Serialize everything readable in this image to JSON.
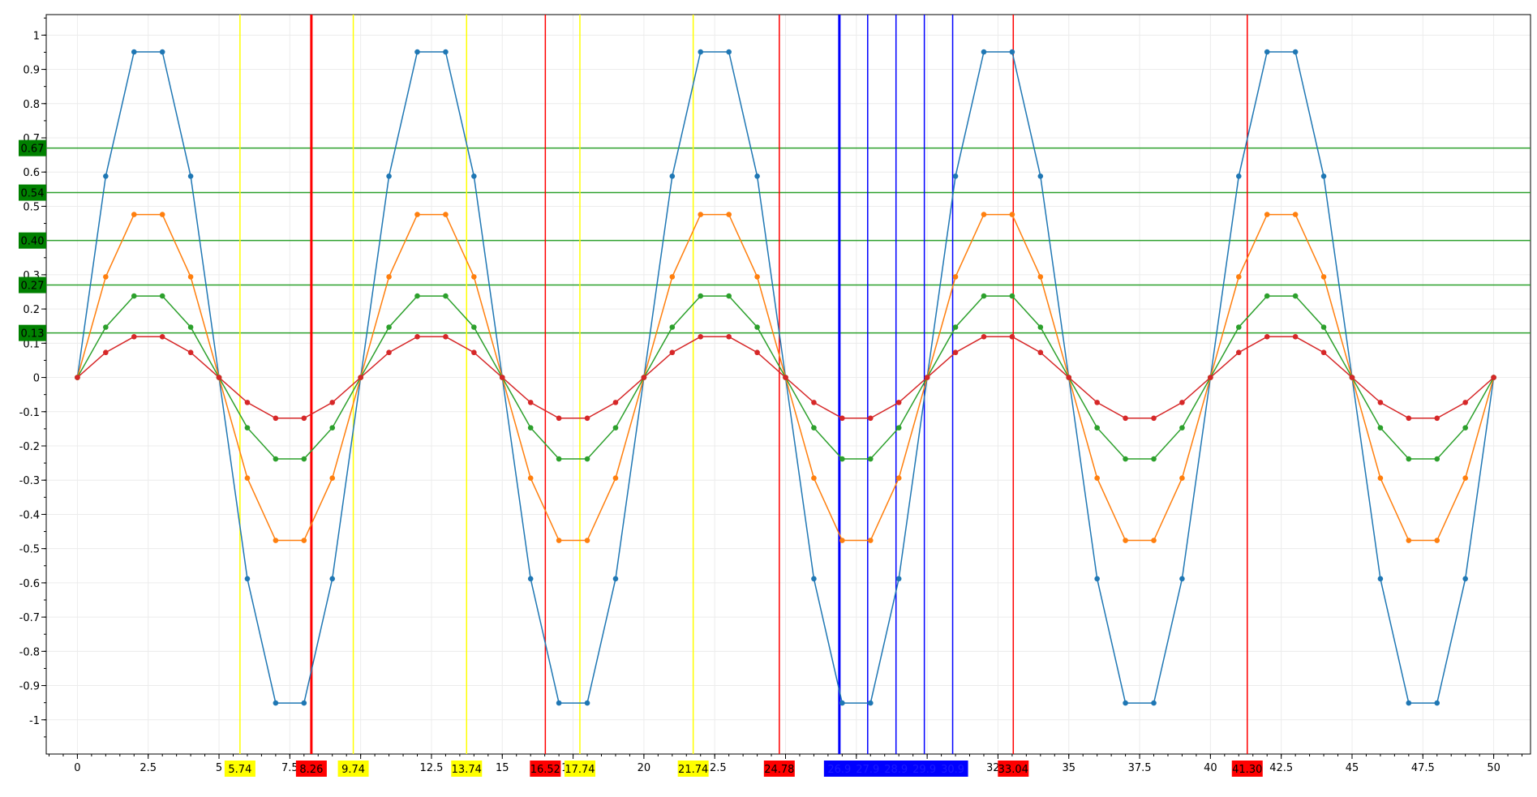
{
  "chart_data": {
    "type": "line",
    "xlim": [
      -1.1,
      51.3
    ],
    "ylim": [
      -1.1,
      1.06
    ],
    "x_ticks": [
      0,
      2.5,
      5,
      7.5,
      10,
      12.5,
      15,
      17.5,
      20,
      22.5,
      25,
      27.5,
      30,
      32.5,
      35,
      37.5,
      40,
      42.5,
      45,
      47.5,
      50
    ],
    "x_tick_labels": [
      "0",
      "2.5",
      "5",
      "7.5",
      "10",
      "12.5",
      "15",
      "17.5",
      "20",
      "22.5",
      "25",
      "27.5",
      "30",
      "32.5",
      "35",
      "37.5",
      "40",
      "42.5",
      "45",
      "47.5",
      "50"
    ],
    "y_ticks": [
      -1,
      -0.9,
      -0.8,
      -0.7,
      -0.6,
      -0.5,
      -0.4,
      -0.3,
      -0.2,
      -0.1,
      0,
      0.1,
      0.2,
      0.3,
      0.4,
      0.5,
      0.6,
      0.7,
      0.8,
      0.9,
      1
    ],
    "y_tick_labels": [
      "-1",
      "-0.9",
      "-0.8",
      "-0.7",
      "-0.6",
      "-0.5",
      "-0.4",
      "-0.3",
      "-0.2",
      "-0.1",
      "0",
      "0.1",
      "0.2",
      "0.3",
      "0.4",
      "0.5",
      "0.6",
      "0.7",
      "0.8",
      "0.9",
      "1"
    ],
    "grid": true,
    "x": [
      0,
      1,
      2,
      3,
      4,
      5,
      6,
      7,
      8,
      9,
      10,
      11,
      12,
      13,
      14,
      15,
      16,
      17,
      18,
      19,
      20,
      21,
      22,
      23,
      24,
      25,
      26,
      27,
      28,
      29,
      30,
      31,
      32,
      33,
      34,
      35,
      36,
      37,
      38,
      39,
      40,
      41,
      42,
      43,
      44,
      45,
      46,
      47,
      48,
      49,
      50
    ],
    "series": [
      {
        "color": "#1f77b4",
        "values": [
          0,
          0.588,
          0.951,
          0.951,
          0.588,
          0,
          -0.588,
          -0.951,
          -0.951,
          -0.588,
          0,
          0.588,
          0.951,
          0.951,
          0.588,
          0,
          -0.588,
          -0.951,
          -0.951,
          -0.588,
          0,
          0.588,
          0.951,
          0.951,
          0.588,
          0,
          -0.588,
          -0.951,
          -0.951,
          -0.588,
          0,
          0.588,
          0.951,
          0.951,
          0.588,
          0,
          -0.588,
          -0.951,
          -0.951,
          -0.588,
          0,
          0.588,
          0.951,
          0.951,
          0.588,
          0,
          -0.588,
          -0.951,
          -0.951,
          -0.588,
          0
        ]
      },
      {
        "color": "#ff7f0e",
        "values": [
          0,
          0.294,
          0.476,
          0.476,
          0.294,
          0,
          -0.294,
          -0.476,
          -0.476,
          -0.294,
          0,
          0.294,
          0.476,
          0.476,
          0.294,
          0,
          -0.294,
          -0.476,
          -0.476,
          -0.294,
          0,
          0.294,
          0.476,
          0.476,
          0.294,
          0,
          -0.294,
          -0.476,
          -0.476,
          -0.294,
          0,
          0.294,
          0.476,
          0.476,
          0.294,
          0,
          -0.294,
          -0.476,
          -0.476,
          -0.294,
          0,
          0.294,
          0.476,
          0.476,
          0.294,
          0,
          -0.294,
          -0.476,
          -0.476,
          -0.294,
          0
        ]
      },
      {
        "color": "#2ca02c",
        "values": [
          0,
          0.147,
          0.238,
          0.238,
          0.147,
          0,
          -0.147,
          -0.238,
          -0.238,
          -0.147,
          0,
          0.147,
          0.238,
          0.238,
          0.147,
          0,
          -0.147,
          -0.238,
          -0.238,
          -0.147,
          0,
          0.147,
          0.238,
          0.238,
          0.147,
          0,
          -0.147,
          -0.238,
          -0.238,
          -0.147,
          0,
          0.147,
          0.238,
          0.238,
          0.147,
          0,
          -0.147,
          -0.238,
          -0.238,
          -0.147,
          0,
          0.147,
          0.238,
          0.238,
          0.147,
          0,
          -0.147,
          -0.238,
          -0.238,
          -0.147,
          0
        ]
      },
      {
        "color": "#d62728",
        "values": [
          0,
          0.073,
          0.119,
          0.119,
          0.073,
          0,
          -0.073,
          -0.119,
          -0.119,
          -0.073,
          0,
          0.073,
          0.119,
          0.119,
          0.073,
          0,
          -0.073,
          -0.119,
          -0.119,
          -0.073,
          0,
          0.073,
          0.119,
          0.119,
          0.073,
          0,
          -0.073,
          -0.119,
          -0.119,
          -0.073,
          0,
          0.073,
          0.119,
          0.119,
          0.073,
          0,
          -0.073,
          -0.119,
          -0.119,
          -0.073,
          0,
          0.073,
          0.119,
          0.119,
          0.073,
          0,
          -0.073,
          -0.119,
          -0.119,
          -0.073,
          0
        ]
      }
    ],
    "horizontal_lines": [
      {
        "y": 0.67,
        "label": "0.67",
        "color": "#2ca02c",
        "label_bg": "#008000"
      },
      {
        "y": 0.54,
        "label": "0.54",
        "color": "#2ca02c",
        "label_bg": "#008000"
      },
      {
        "y": 0.4,
        "label": "0.40",
        "color": "#2ca02c",
        "label_bg": "#008000"
      },
      {
        "y": 0.27,
        "label": "0.27",
        "color": "#2ca02c",
        "label_bg": "#008000"
      },
      {
        "y": 0.13,
        "label": "0.13",
        "color": "#2ca02c",
        "label_bg": "#008000"
      }
    ],
    "vertical_lines": [
      {
        "x": 5.74,
        "label": "5.74",
        "color": "#ffff00",
        "label_bg": "#ffff00"
      },
      {
        "x": 8.26,
        "label": "8.26",
        "color": "#ff0000",
        "label_bg": "#ff0000",
        "bold": true
      },
      {
        "x": 9.74,
        "label": "9.74",
        "color": "#ffff00",
        "label_bg": "#ffff00"
      },
      {
        "x": 13.74,
        "label": "13.74",
        "color": "#ffff00",
        "label_bg": "#ffff00"
      },
      {
        "x": 16.52,
        "label": "16.52",
        "color": "#ff0000",
        "label_bg": "#ff0000"
      },
      {
        "x": 17.74,
        "label": "17.74",
        "color": "#ffff00",
        "label_bg": "#ffff00"
      },
      {
        "x": 21.74,
        "label": "21.74",
        "color": "#ffff00",
        "label_bg": "#ffff00"
      },
      {
        "x": 24.78,
        "label": "24.78",
        "color": "#ff0000",
        "label_bg": "#ff0000"
      },
      {
        "x": 26.9,
        "label": "26.9",
        "color": "#0000ff",
        "label_bg": "#0000ff",
        "bold": true
      },
      {
        "x": 27.9,
        "label": "27.9",
        "color": "#0000ff",
        "label_bg": "#0000ff"
      },
      {
        "x": 28.9,
        "label": "28.9",
        "color": "#0000ff",
        "label_bg": "#0000ff"
      },
      {
        "x": 29.9,
        "label": "29.9",
        "color": "#0000ff",
        "label_bg": "#0000ff"
      },
      {
        "x": 30.9,
        "label": "30.9",
        "color": "#0000ff",
        "label_bg": "#0000ff"
      },
      {
        "x": 33.04,
        "label": "33.04",
        "color": "#ff0000",
        "label_bg": "#ff0000"
      },
      {
        "x": 41.3,
        "label": "41.30",
        "color": "#ff0000",
        "label_bg": "#ff0000"
      }
    ]
  }
}
